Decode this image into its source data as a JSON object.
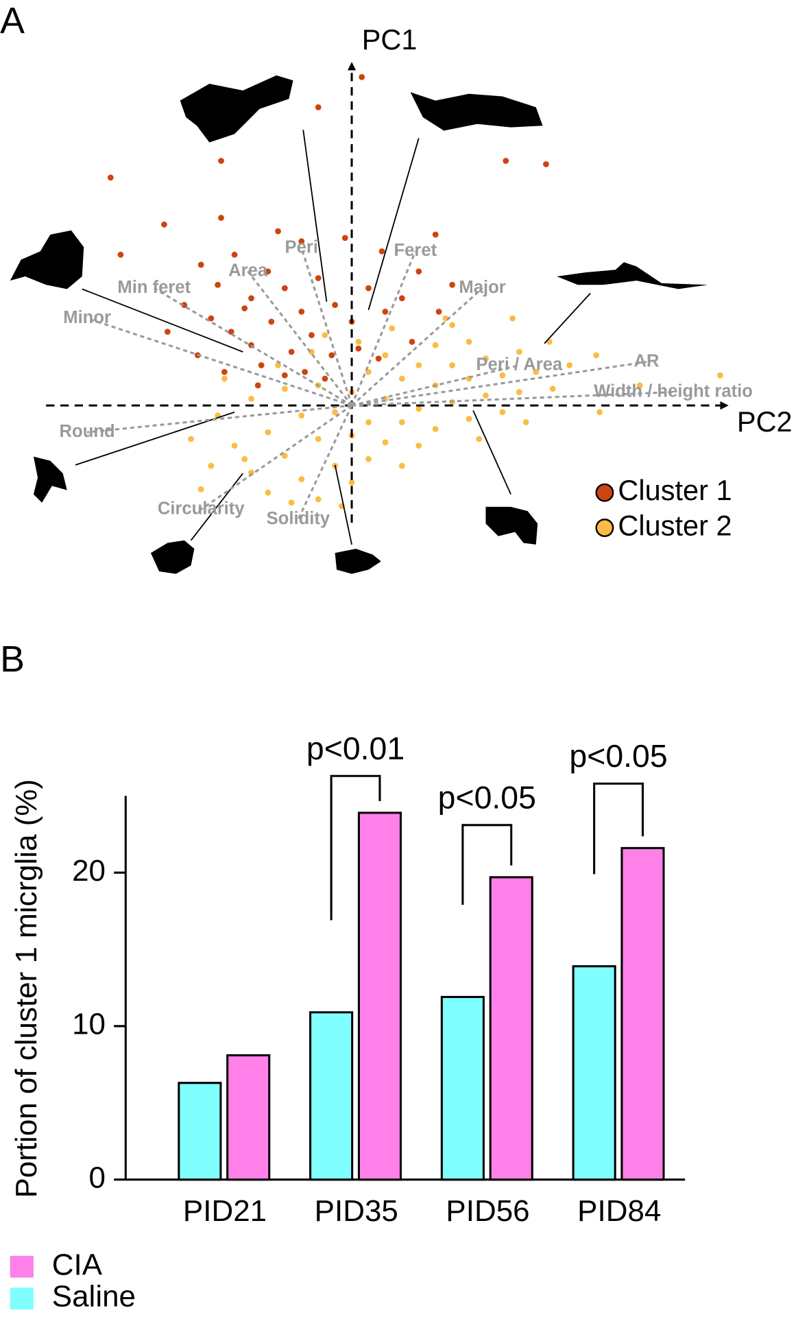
{
  "chart_data": [
    {
      "type": "scatter",
      "panel": "A",
      "x_label": "PC2",
      "y_label": "PC1",
      "xlim": [
        -9,
        11
      ],
      "ylim": [
        -3.5,
        10
      ],
      "series": [
        {
          "name": "Cluster 1",
          "color": "#cc4411",
          "x": [
            0.3,
            -1,
            -3.9,
            -7.2,
            4.6,
            5.8,
            -6.9,
            -5.6,
            -3.9,
            -4.5,
            -4,
            -3.5,
            -3,
            -2.5,
            -2,
            -1.5,
            -1,
            -0.5,
            0,
            0.5,
            1,
            1.5,
            2,
            -4.2,
            -3.6,
            -3,
            -2.4,
            -1.8,
            -1.2,
            -0.6,
            0.2,
            0.8,
            -3.2,
            -2.7,
            -2,
            -1.4,
            -0.8,
            -4.6,
            -5,
            -5.5,
            2.6,
            3,
            1.8,
            -2.2,
            -0.2,
            0.9,
            -1.5,
            2.5,
            -3.8,
            -2.8
          ],
          "y": [
            9.8,
            8.9,
            7.3,
            6.8,
            7.3,
            7.2,
            4.5,
            5.4,
            5.6,
            4.2,
            3.6,
            4.5,
            3.2,
            4,
            3.5,
            2.8,
            3.8,
            3,
            2.5,
            3.5,
            2.8,
            3.2,
            4,
            2.6,
            2.2,
            1.8,
            2.5,
            1.6,
            2.1,
            1.5,
            1.7,
            1.4,
            2.9,
            1.2,
            0.9,
            1,
            0.8,
            1.5,
            3,
            2.2,
            2.8,
            3.6,
            1.9,
            5.2,
            5,
            4.6,
            4.9,
            5.1,
            1,
            0.6
          ]
        },
        {
          "name": "Cluster 2",
          "color": "#fcbb44",
          "x": [
            11,
            7.4,
            5.9,
            -4.8,
            -4.5,
            7.3,
            8.6,
            4.8,
            3,
            -4,
            -3.5,
            -3,
            -3,
            -2.5,
            -2.5,
            -2,
            -2,
            -1.5,
            -1.5,
            -1,
            -1,
            -1,
            -0.5,
            -0.5,
            0,
            0,
            0,
            0.5,
            0.5,
            0.5,
            1,
            1,
            1,
            1.5,
            1.5,
            1.5,
            2,
            2,
            2,
            2.5,
            2.5,
            2.5,
            3,
            3,
            3.5,
            3.5,
            3.5,
            4,
            4,
            4.5,
            4.5,
            5,
            5,
            5.5,
            6,
            6.5,
            -3.8,
            -2.2,
            -1.2,
            0.2,
            -0.3,
            -1.8,
            -3.2,
            -4.2,
            2.8,
            1.2,
            -0.8,
            3.8,
            5.2
          ],
          "y": [
            0.9,
            -0.2,
            1.9,
            -1,
            -2.5,
            1.5,
            0.6,
            2.6,
            2.4,
            -0.3,
            -1.2,
            0.2,
            -2,
            -0.8,
            -2.6,
            0.5,
            -1.5,
            -0.3,
            -2.2,
            0.6,
            -1,
            -2.8,
            -0.2,
            -1.8,
            0.4,
            -0.9,
            -2.3,
            1,
            -0.5,
            -1.6,
            0.2,
            -1.1,
            1.5,
            0.8,
            -0.5,
            -1.8,
            1.2,
            -0.1,
            -1.2,
            0.6,
            1.8,
            -0.7,
            0.1,
            1.2,
            0.8,
            -0.4,
            1.9,
            0.3,
            1.4,
            0.9,
            -0.2,
            1.6,
            0.4,
            1,
            0.5,
            1.2,
            0.8,
            1.2,
            1.6,
            1.9,
            -3,
            -2.9,
            -1.6,
            -1.8,
            2.6,
            2.3,
            2.1,
            -1,
            -0.5
          ]
        }
      ],
      "loadings": [
        {
          "name": "Peri",
          "x": -1.5,
          "y": 4.7
        },
        {
          "name": "Area",
          "x": -3.1,
          "y": 4
        },
        {
          "name": "Min feret",
          "x": -5.9,
          "y": 3.5
        },
        {
          "name": "Minor",
          "x": -7.9,
          "y": 2.6
        },
        {
          "name": "Feret",
          "x": 1.9,
          "y": 4.6
        },
        {
          "name": "Major",
          "x": 3.9,
          "y": 3.5
        },
        {
          "name": "Peri / Area",
          "x": 5,
          "y": 1.2
        },
        {
          "name": "AR",
          "x": 8.8,
          "y": 1.3
        },
        {
          "name": "Width / height ratio",
          "x": 9.6,
          "y": 0.4
        },
        {
          "name": "Round",
          "x": -7.9,
          "y": -0.8
        },
        {
          "name": "Circularity",
          "x": -4.5,
          "y": -3.1
        },
        {
          "name": "Solidity",
          "x": -1.6,
          "y": -3.4
        }
      ]
    },
    {
      "type": "bar",
      "panel": "B",
      "y_label": "Portion of cluster 1 micrglia (%)",
      "categories": [
        "PID21",
        "PID35",
        "PID56",
        "PID84"
      ],
      "ylim": [
        0,
        25
      ],
      "yticks": [
        0,
        10,
        20
      ],
      "series": [
        {
          "name": "Saline",
          "color": "#80ffff",
          "values": [
            6.3,
            10.9,
            11.9,
            13.9
          ]
        },
        {
          "name": "CIA",
          "color": "#ff80e8",
          "values": [
            8.1,
            23.9,
            19.7,
            21.6
          ]
        }
      ],
      "significance_labels": [
        null,
        "p<0.01",
        "p<0.05",
        "p<0.05"
      ],
      "bracket_y": [
        null,
        26.3,
        23.1,
        25.8
      ]
    }
  ]
}
